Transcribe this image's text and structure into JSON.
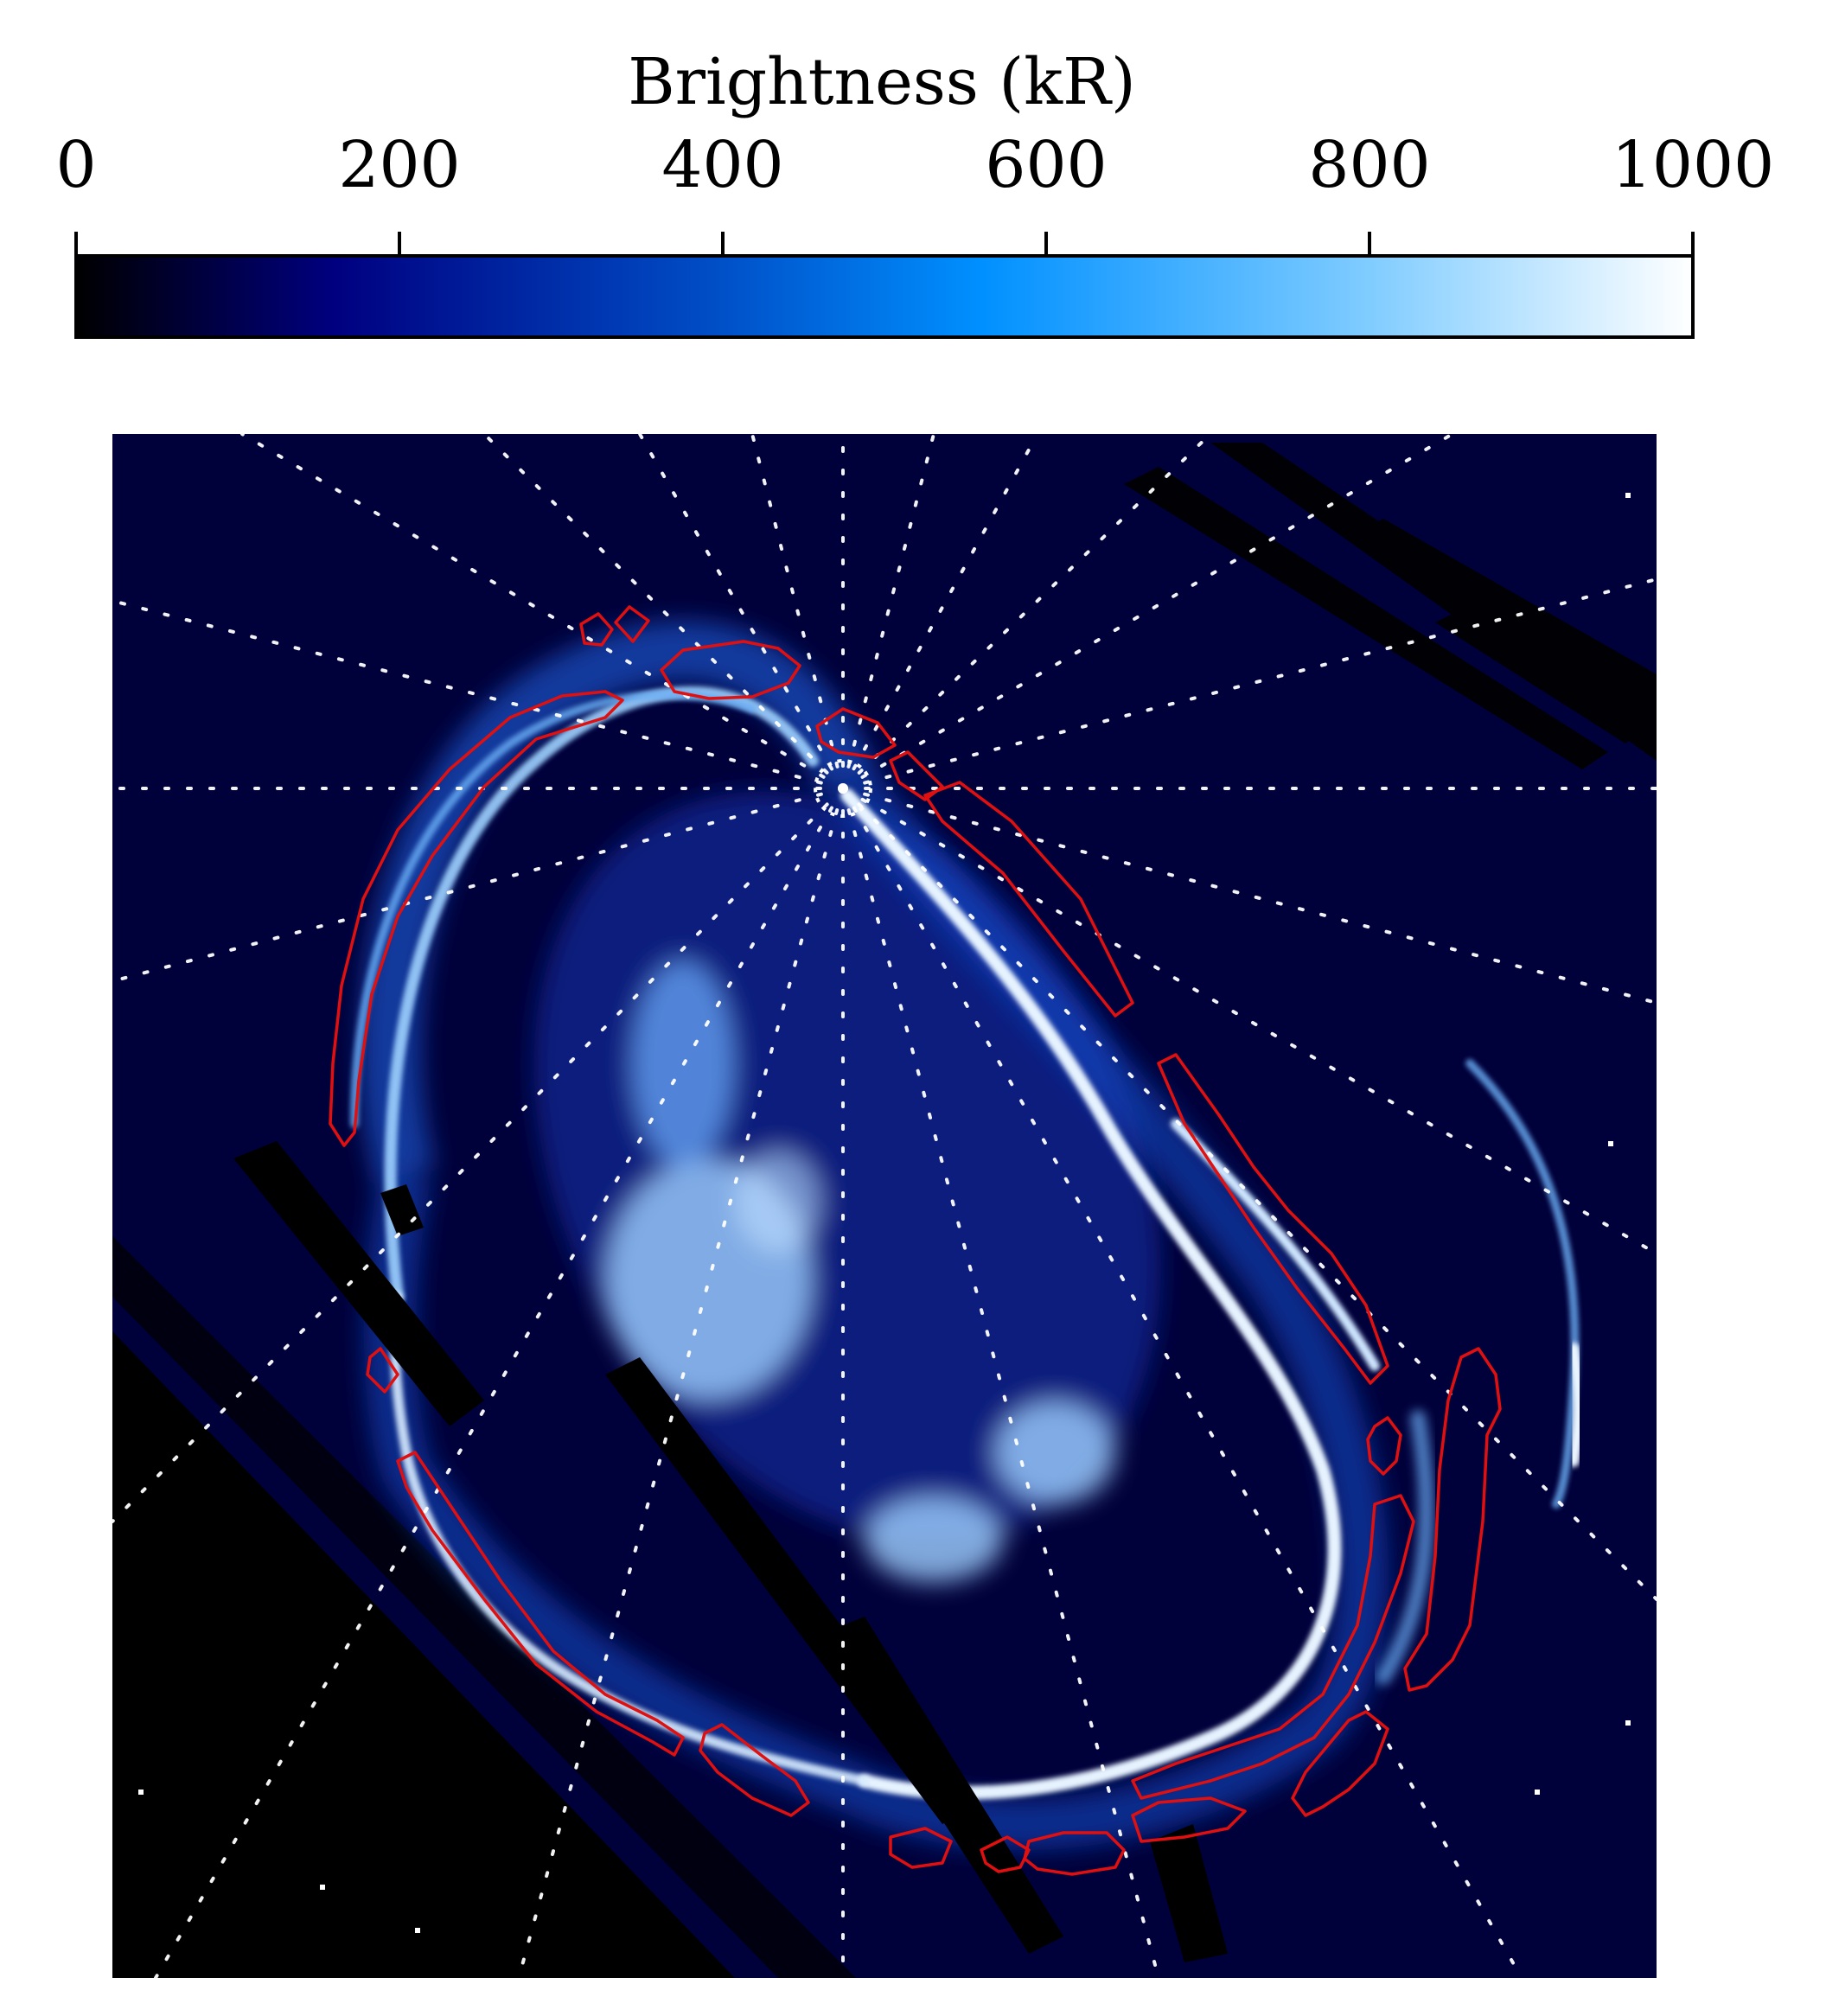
{
  "colorbar": {
    "title": "Brightness (kR)",
    "ticks": [
      "0",
      "200",
      "400",
      "600",
      "800",
      "1000"
    ],
    "range": [
      0,
      1000
    ],
    "colors": [
      "#000000",
      "#000080",
      "#0050c8",
      "#0090ff",
      "#80ccff",
      "#ffffff"
    ]
  },
  "image": {
    "background": "#00003a",
    "aurora_color": "#d8ecff",
    "contour_color": "#e01010",
    "grid_color": "#ffffff",
    "mask_color": "#000000"
  }
}
